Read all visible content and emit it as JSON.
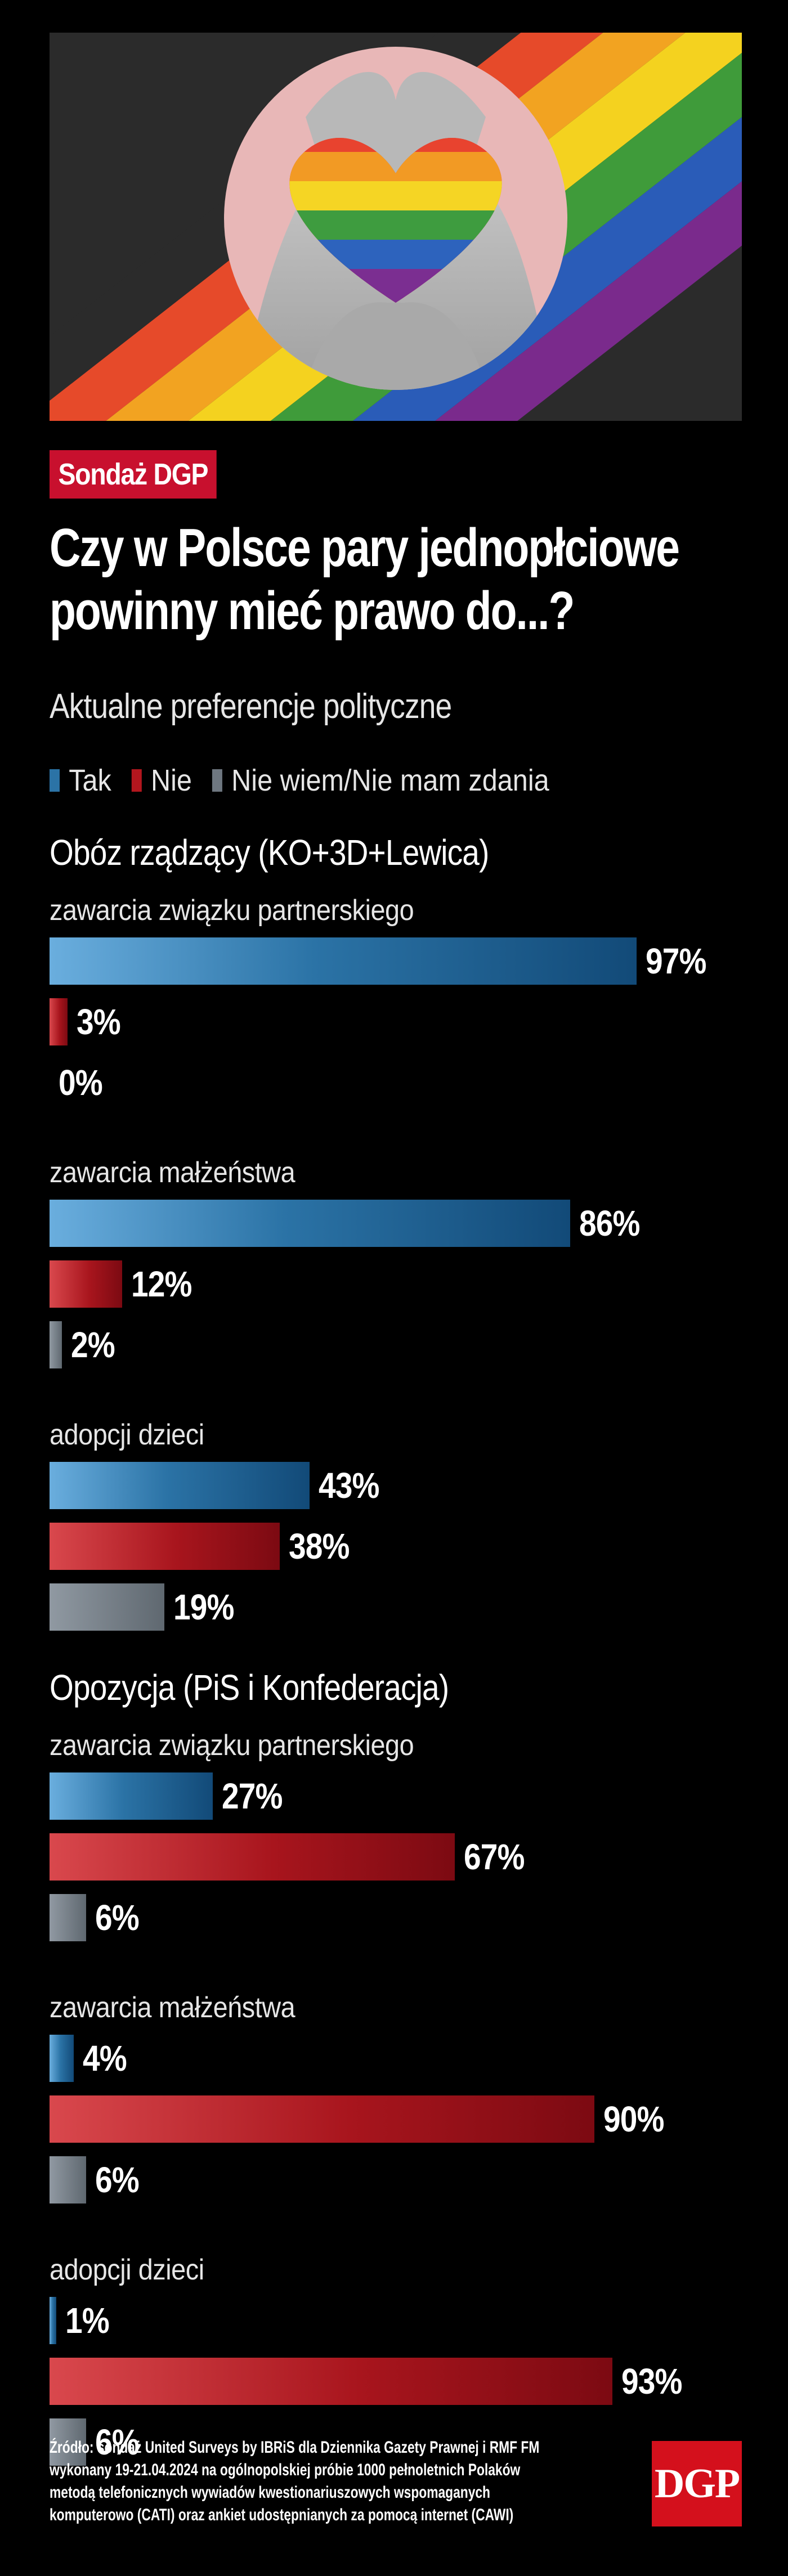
{
  "badge": "Sondaż DGP",
  "title_line1": "Czy w Polsce pary jednopłciowe",
  "title_line2": "powinny mieć prawo do...?",
  "subtitle": "Aktualne preferencje polityczne",
  "legend": [
    {
      "label": "Tak",
      "color": "#2b73a6"
    },
    {
      "label": "Nie",
      "color": "#b3161e"
    },
    {
      "label": "Nie wiem/Nie mam zdania",
      "color": "#6e7780"
    }
  ],
  "hero_icons": [
    "rainbow-stripes",
    "hands-heart-icon"
  ],
  "chart_data": {
    "type": "bar",
    "orientation": "horizontal",
    "unit": "%",
    "xlim": [
      0,
      100
    ],
    "series": [
      {
        "name": "Tak",
        "color": "#2b73a6"
      },
      {
        "name": "Nie",
        "color": "#b3161e"
      },
      {
        "name": "Nie wiem/Nie mam zdania",
        "color": "#6e7780"
      }
    ],
    "groups": [
      {
        "name": "Obóz rządzący (KO+3D+Lewica)",
        "questions": [
          {
            "label": "zawarcia związku partnerskiego",
            "values": [
              97,
              3,
              0
            ]
          },
          {
            "label": "zawarcia małżeństwa",
            "values": [
              86,
              12,
              2
            ]
          },
          {
            "label": "adopcji dzieci",
            "values": [
              43,
              38,
              19
            ]
          }
        ]
      },
      {
        "name": "Opozycja (PiS i Konfederacja)",
        "questions": [
          {
            "label": "zawarcia związku partnerskiego",
            "values": [
              27,
              67,
              6
            ]
          },
          {
            "label": "zawarcia małżeństwa",
            "values": [
              4,
              90,
              6
            ]
          },
          {
            "label": "adopcji dzieci",
            "values": [
              1,
              93,
              6
            ]
          }
        ]
      }
    ]
  },
  "source_lines": [
    "Źródło: sondaż United Surveys by IBRiS dla Dziennika Gazety Prawnej i RMF FM",
    "wykonany 19-21.04.2024 na ogólnopolskiej próbie 1000 pełnoletnich Polaków",
    "metodą telefonicznych wywiadów kwestionariuszowych wspomaganych",
    "komputerowo (CATI) oraz ankiet udostępnianych za pomocą internet (CAWI)"
  ],
  "logo": "DGP"
}
